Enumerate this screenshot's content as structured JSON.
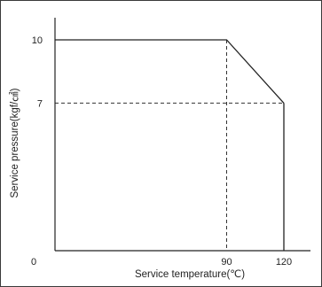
{
  "chart_data": {
    "type": "line",
    "xlabel": "Service temperature(℃)",
    "ylabel": "Service pressure(kgf/㎠)",
    "xlim": [
      0,
      130
    ],
    "ylim": [
      0,
      11.05
    ],
    "origin_label": "0",
    "x_ticks": [
      90,
      120
    ],
    "x_tick_labels": [
      "90",
      "120"
    ],
    "y_ticks": [
      7,
      10
    ],
    "y_tick_labels": [
      "7",
      "10"
    ],
    "grid": false,
    "series": [
      {
        "x": [
          0,
          90,
          120
        ],
        "y": [
          10,
          10,
          7
        ]
      }
    ],
    "drop_line": {
      "x": [
        120,
        120
      ],
      "y": [
        7,
        0
      ]
    },
    "reference_lines": [
      {
        "x": [
          90,
          90
        ],
        "y": [
          10,
          0
        ]
      },
      {
        "x": [
          0,
          120
        ],
        "y": [
          7,
          7
        ]
      }
    ]
  }
}
